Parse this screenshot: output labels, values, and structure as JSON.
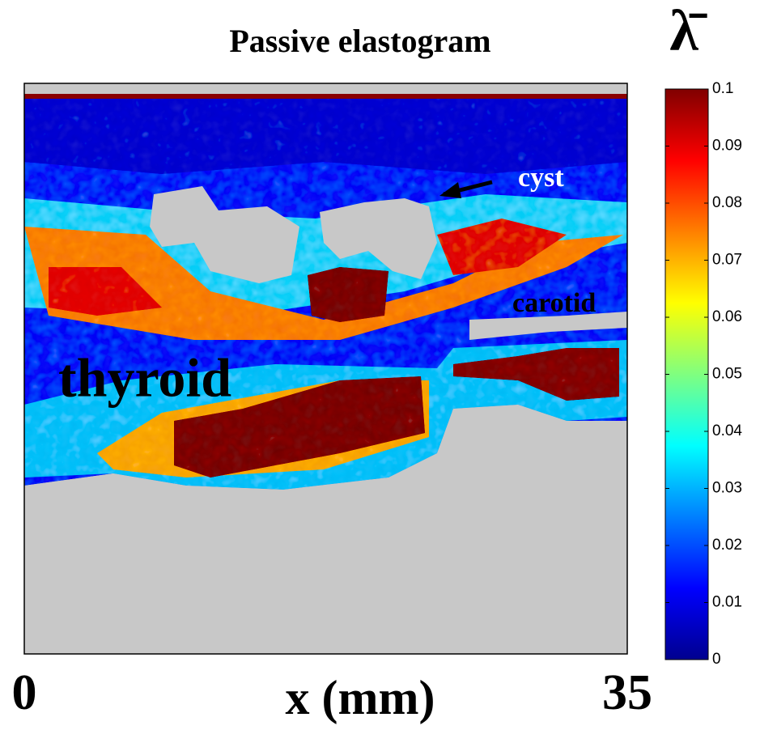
{
  "chart_data": {
    "type": "heatmap",
    "title": "Passive elastogram",
    "xlabel": "x (mm)",
    "xlim": [
      0,
      35
    ],
    "xticks": [
      0,
      35
    ],
    "colorbar_label": "λ̄",
    "colormap": "jet",
    "clim": [
      0,
      0.1
    ],
    "cticks": [
      0,
      0.01,
      0.02,
      0.03,
      0.04,
      0.05,
      0.06,
      0.07,
      0.08,
      0.09,
      0.1
    ],
    "annotations": [
      "cyst",
      "carotid",
      "thyroid"
    ]
  }
}
